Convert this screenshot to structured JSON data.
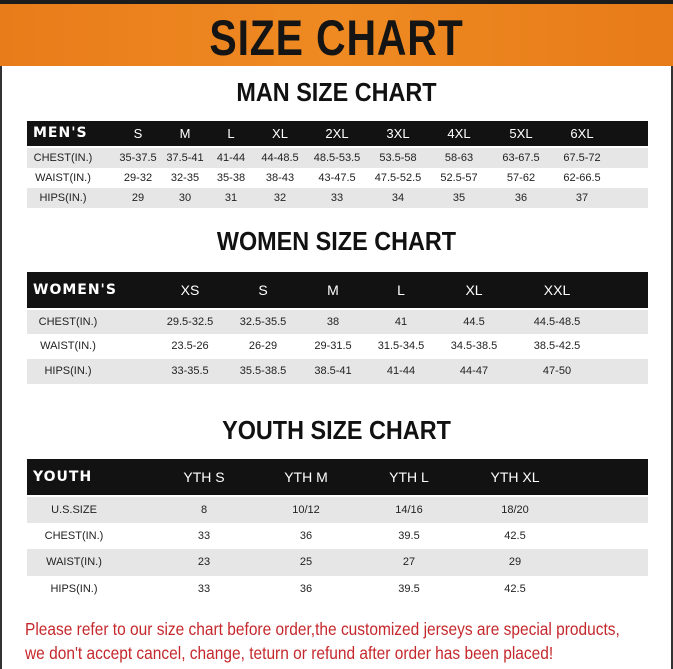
{
  "banner": {
    "title": "SIZE CHART",
    "color": "#ef8a22"
  },
  "men": {
    "title": "MAN SIZE CHART",
    "header": "MEN'S",
    "sizes": [
      "S",
      "M",
      "L",
      "XL",
      "2XL",
      "3XL",
      "4XL",
      "5XL",
      "6XL"
    ],
    "rows": [
      {
        "label": "CHEST(IN.)",
        "values": [
          "35-37.5",
          "37.5-41",
          "41-44",
          "44-48.5",
          "48.5-53.5",
          "53.5-58",
          "58-63",
          "63-67.5",
          "67.5-72"
        ]
      },
      {
        "label": "WAIST(IN.)",
        "values": [
          "29-32",
          "32-35",
          "35-38",
          "38-43",
          "43-47.5",
          "47.5-52.5",
          "52.5-57",
          "57-62",
          "62-66.5"
        ]
      },
      {
        "label": "HIPS(IN.)",
        "values": [
          "29",
          "30",
          "31",
          "32",
          "33",
          "34",
          "35",
          "36",
          "37"
        ]
      }
    ]
  },
  "women": {
    "title": "WOMEN SIZE CHART",
    "header": "WOMEN'S",
    "sizes": [
      "XS",
      "S",
      "M",
      "L",
      "XL",
      "XXL"
    ],
    "rows": [
      {
        "label": "CHEST(IN.)",
        "values": [
          "29.5-32.5",
          "32.5-35.5",
          "38",
          "41",
          "44.5",
          "44.5-48.5"
        ]
      },
      {
        "label": "WAIST(IN.)",
        "values": [
          "23.5-26",
          "26-29",
          "29-31.5",
          "31.5-34.5",
          "34.5-38.5",
          "38.5-42.5"
        ]
      },
      {
        "label": "HIPS(IN.)",
        "values": [
          "33-35.5",
          "35.5-38.5",
          "38.5-41",
          "41-44",
          "44-47",
          "47-50"
        ]
      }
    ]
  },
  "youth": {
    "title": "YOUTH SIZE CHART",
    "header": "YOUTH",
    "sizes": [
      "YTH S",
      "YTH M",
      "YTH L",
      "YTH XL"
    ],
    "rows": [
      {
        "label": "U.S.SIZE",
        "values": [
          "8",
          "10/12",
          "14/16",
          "18/20"
        ]
      },
      {
        "label": "CHEST(IN.)",
        "values": [
          "33",
          "36",
          "39.5",
          "42.5"
        ]
      },
      {
        "label": "WAIST(IN.)",
        "values": [
          "23",
          "25",
          "27",
          "29"
        ]
      },
      {
        "label": "HIPS(IN.)",
        "values": [
          "33",
          "36",
          "39.5",
          "42.5"
        ]
      }
    ]
  },
  "notice": {
    "line1": "Please refer to our size chart before order,the customized jerseys are special products,",
    "line2": "we don't accept cancel, change, teturn or refund after order has been placed!",
    "color": "#c5282c"
  }
}
